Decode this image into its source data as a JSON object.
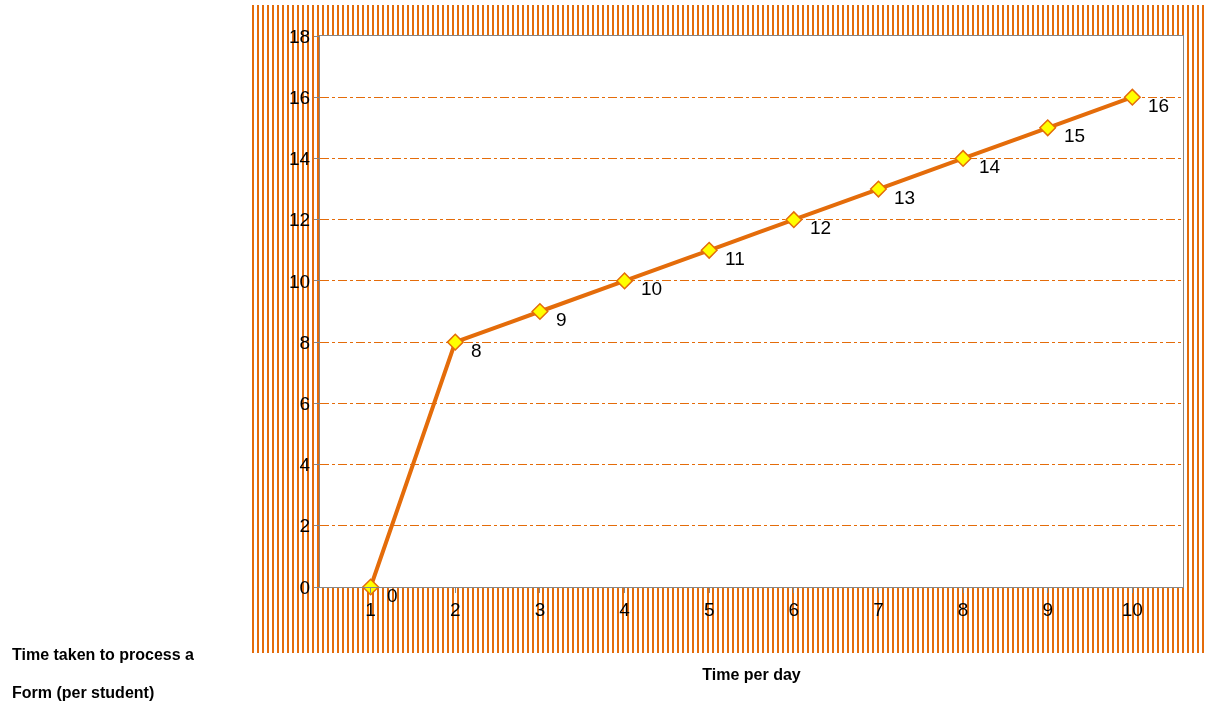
{
  "chart_data": {
    "type": "line",
    "xlabel": "Time per day",
    "ylabel": "Time taken to process a Form (per student)",
    "categories": [
      "1",
      "2",
      "3",
      "4",
      "5",
      "6",
      "7",
      "8",
      "9",
      "10"
    ],
    "series": [
      {
        "color": "#e46c0a",
        "values": [
          0,
          8,
          9,
          10,
          11,
          12,
          13,
          14,
          15,
          16
        ]
      }
    ],
    "ylim": [
      0,
      18
    ],
    "yticks": [
      0,
      2,
      4,
      6,
      8,
      10,
      12,
      14,
      16,
      18
    ],
    "grid": "y",
    "marker": "diamond",
    "line_style": "solid",
    "data_labels": true
  }
}
